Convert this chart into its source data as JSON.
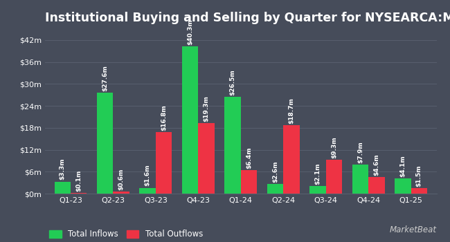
{
  "title": "Institutional Buying and Selling by Quarter for NYSEARCA:MUSI",
  "categories": [
    "Q1-23",
    "Q2-23",
    "Q3-23",
    "Q4-23",
    "Q1-24",
    "Q2-24",
    "Q3-24",
    "Q4-24",
    "Q1-25"
  ],
  "inflows": [
    3.3,
    27.6,
    1.6,
    40.3,
    26.5,
    2.6,
    2.1,
    7.9,
    4.1
  ],
  "outflows": [
    0.1,
    0.6,
    16.8,
    19.3,
    6.4,
    18.7,
    9.3,
    4.6,
    1.5
  ],
  "inflow_labels": [
    "$3.3m",
    "$27.6m",
    "$1.6m",
    "$40.3m",
    "$26.5m",
    "$2.6m",
    "$2.1m",
    "$7.9m",
    "$4.1m"
  ],
  "outflow_labels": [
    "$0.1m",
    "$0.6m",
    "$16.8m",
    "$19.3m",
    "$6.4m",
    "$18.7m",
    "$9.3m",
    "$4.6m",
    "$1.5m"
  ],
  "inflow_color": "#22cc55",
  "outflow_color": "#ee3344",
  "bg_color": "#464c5a",
  "grid_color": "#585f6e",
  "text_color": "#ffffff",
  "ylabel_ticks": [
    "$0m",
    "$6m",
    "$12m",
    "$18m",
    "$24m",
    "$30m",
    "$36m",
    "$42m"
  ],
  "ytick_vals": [
    0,
    6,
    12,
    18,
    24,
    30,
    36,
    42
  ],
  "ylim": [
    0,
    45
  ],
  "legend_inflow": "Total Inflows",
  "legend_outflow": "Total Outflows",
  "bar_width": 0.38,
  "title_fontsize": 12.5,
  "tick_fontsize": 8,
  "label_fontsize": 6.5
}
